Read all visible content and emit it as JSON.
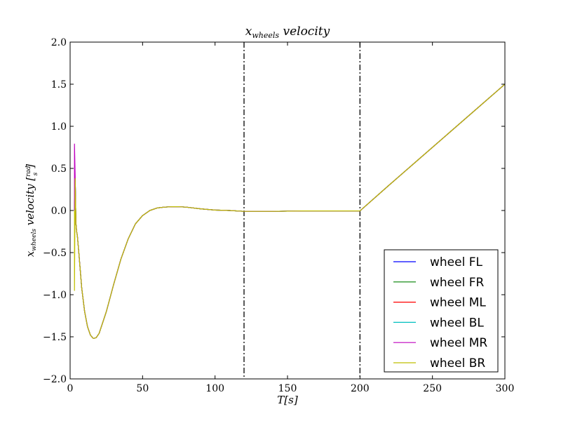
{
  "chart_data": {
    "type": "line",
    "title": {
      "main": "x",
      "sub": "wheels",
      "rest": " velocity"
    },
    "xlabel": "T[s]",
    "ylabel": {
      "main": "x",
      "sub": "wheels",
      "rest": " velocity [",
      "num": "rad",
      "den": "s",
      "close": "]"
    },
    "xlim": [
      0,
      300
    ],
    "ylim": [
      -2.0,
      2.0
    ],
    "xticks": [
      0,
      50,
      100,
      150,
      200,
      250,
      300
    ],
    "xtick_labels": [
      "0",
      "50",
      "100",
      "150",
      "200",
      "250",
      "300"
    ],
    "yticks": [
      -2.0,
      -1.5,
      -1.0,
      -0.5,
      0.0,
      0.5,
      1.0,
      1.5,
      2.0
    ],
    "ytick_labels": [
      "−2.0",
      "−1.5",
      "−1.0",
      "−0.5",
      "0.0",
      "0.5",
      "1.0",
      "1.5",
      "2.0"
    ],
    "grid": false,
    "legend_position": "lower-right",
    "vlines": [
      {
        "x": 120,
        "style": "dash-dot",
        "color": "#000000"
      },
      {
        "x": 200,
        "style": "dash-dot",
        "color": "#000000"
      }
    ],
    "series": [
      {
        "name": "wheel FL",
        "color": "#0000ff",
        "x": [
          3,
          3.5,
          4,
          4.5,
          5,
          6,
          8,
          10,
          12,
          14,
          16,
          18,
          20,
          25,
          30,
          35,
          40,
          45,
          50,
          55,
          60,
          65,
          70,
          75,
          80,
          90,
          100,
          110,
          120,
          140,
          160,
          180,
          200,
          220,
          240,
          260,
          280,
          300
        ],
        "y": [
          0.0,
          0.38,
          -0.15,
          -0.25,
          -0.3,
          -0.5,
          -0.92,
          -1.2,
          -1.38,
          -1.48,
          -1.52,
          -1.51,
          -1.46,
          -1.2,
          -0.88,
          -0.58,
          -0.34,
          -0.16,
          -0.06,
          0.0,
          0.03,
          0.04,
          0.045,
          0.045,
          0.04,
          0.02,
          0.005,
          0.0,
          -0.01,
          -0.01,
          -0.005,
          -0.005,
          -0.005,
          0.3,
          0.6,
          0.9,
          1.2,
          1.5
        ]
      },
      {
        "name": "wheel FR",
        "color": "#008000",
        "x": [
          3,
          3.5,
          4,
          4.5,
          5,
          6,
          8,
          10,
          12,
          14,
          16,
          18,
          20,
          25,
          30,
          35,
          40,
          45,
          50,
          55,
          60,
          65,
          70,
          75,
          80,
          90,
          100,
          110,
          120,
          140,
          160,
          180,
          200,
          220,
          240,
          260,
          280,
          300
        ],
        "y": [
          0.0,
          0.38,
          -0.15,
          -0.25,
          -0.3,
          -0.5,
          -0.92,
          -1.2,
          -1.38,
          -1.48,
          -1.52,
          -1.51,
          -1.46,
          -1.2,
          -0.88,
          -0.58,
          -0.34,
          -0.16,
          -0.06,
          0.0,
          0.03,
          0.04,
          0.045,
          0.045,
          0.04,
          0.02,
          0.005,
          0.0,
          -0.01,
          -0.01,
          -0.005,
          -0.005,
          -0.005,
          0.3,
          0.6,
          0.9,
          1.2,
          1.5
        ]
      },
      {
        "name": "wheel ML",
        "color": "#ff0000",
        "x": [
          3,
          3.5,
          4,
          4.5,
          5,
          6,
          8,
          10,
          12,
          14,
          16,
          18,
          20,
          25,
          30,
          35,
          40,
          45,
          50,
          55,
          60,
          65,
          70,
          75,
          80,
          90,
          100,
          110,
          120,
          140,
          160,
          180,
          200,
          220,
          240,
          260,
          280,
          300
        ],
        "y": [
          0.0,
          0.38,
          -0.15,
          -0.25,
          -0.3,
          -0.5,
          -0.92,
          -1.2,
          -1.38,
          -1.48,
          -1.52,
          -1.51,
          -1.46,
          -1.2,
          -0.88,
          -0.58,
          -0.34,
          -0.16,
          -0.06,
          0.0,
          0.03,
          0.04,
          0.045,
          0.045,
          0.04,
          0.02,
          0.005,
          0.0,
          -0.01,
          -0.01,
          -0.005,
          -0.005,
          -0.005,
          0.3,
          0.6,
          0.9,
          1.2,
          1.5
        ]
      },
      {
        "name": "wheel BL",
        "color": "#00bfbf",
        "x": [
          3,
          3.5,
          4,
          4.5,
          5,
          6,
          8,
          10,
          12,
          14,
          16,
          18,
          20,
          25,
          30,
          35,
          40,
          45,
          50,
          55,
          60,
          65,
          70,
          75,
          80,
          90,
          100,
          110,
          120,
          140,
          160,
          180,
          200,
          220,
          240,
          260,
          280,
          300
        ],
        "y": [
          0.0,
          0.38,
          -0.15,
          -0.25,
          -0.3,
          -0.5,
          -0.92,
          -1.2,
          -1.38,
          -1.48,
          -1.52,
          -1.51,
          -1.46,
          -1.2,
          -0.88,
          -0.58,
          -0.34,
          -0.16,
          -0.06,
          0.0,
          0.03,
          0.04,
          0.045,
          0.045,
          0.04,
          0.02,
          0.005,
          0.0,
          -0.01,
          -0.01,
          -0.005,
          -0.005,
          -0.005,
          0.3,
          0.6,
          0.9,
          1.2,
          1.5
        ]
      },
      {
        "name": "wheel MR",
        "color": "#bf00bf",
        "x": [
          3,
          3.01,
          3.5,
          4,
          4.5,
          5,
          6,
          8,
          10,
          12,
          14,
          16,
          18,
          20,
          25,
          30,
          35,
          40,
          45,
          50,
          55,
          60,
          65,
          70,
          75,
          80,
          90,
          100,
          110,
          120,
          140,
          160,
          180,
          200,
          220,
          240,
          260,
          280,
          300
        ],
        "y": [
          0.0,
          0.79,
          0.38,
          -0.15,
          -0.25,
          -0.3,
          -0.5,
          -0.92,
          -1.2,
          -1.38,
          -1.48,
          -1.52,
          -1.51,
          -1.46,
          -1.2,
          -0.88,
          -0.58,
          -0.34,
          -0.16,
          -0.06,
          0.0,
          0.03,
          0.04,
          0.045,
          0.045,
          0.04,
          0.02,
          0.005,
          0.0,
          -0.01,
          -0.01,
          -0.005,
          -0.005,
          -0.005,
          0.3,
          0.6,
          0.9,
          1.2,
          1.5
        ]
      },
      {
        "name": "wheel BR",
        "color": "#bfbf00",
        "x": [
          3,
          3.01,
          3.5,
          4,
          4.5,
          5,
          6,
          8,
          10,
          12,
          14,
          16,
          18,
          20,
          25,
          30,
          35,
          40,
          45,
          50,
          55,
          60,
          65,
          70,
          75,
          80,
          90,
          100,
          110,
          120,
          140,
          160,
          180,
          200,
          220,
          240,
          260,
          280,
          300
        ],
        "y": [
          0.0,
          -0.95,
          0.38,
          -0.15,
          -0.25,
          -0.3,
          -0.5,
          -0.92,
          -1.2,
          -1.38,
          -1.48,
          -1.52,
          -1.51,
          -1.46,
          -1.2,
          -0.88,
          -0.58,
          -0.34,
          -0.16,
          -0.06,
          0.0,
          0.03,
          0.04,
          0.045,
          0.045,
          0.04,
          0.02,
          0.005,
          0.0,
          -0.01,
          -0.01,
          -0.005,
          -0.005,
          -0.005,
          0.3,
          0.6,
          0.9,
          1.2,
          1.5
        ]
      }
    ]
  }
}
